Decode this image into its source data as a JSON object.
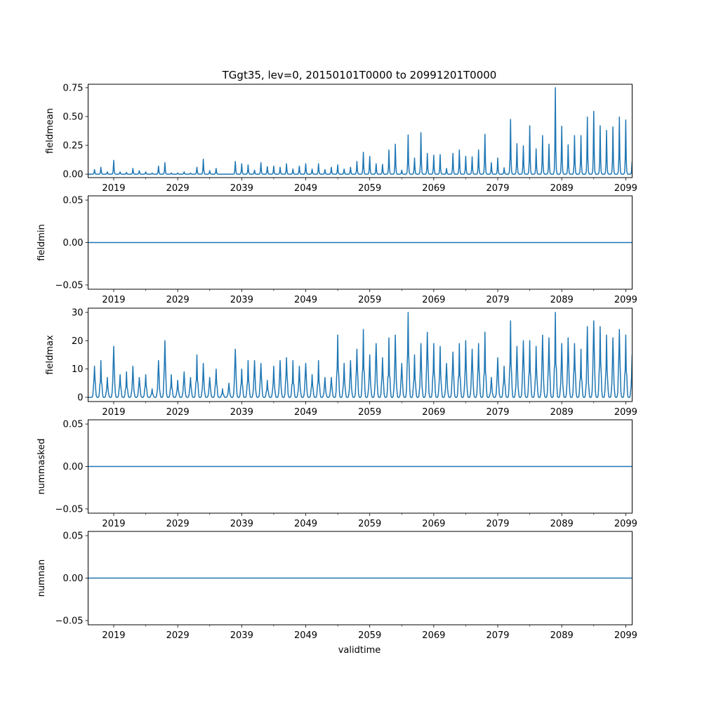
{
  "chart_data": {
    "type": "line",
    "title": "TGgt35, lev=0, 20150101T0000 to 20991201T0000",
    "xlabel": "validtime",
    "xlim": [
      2015.0,
      2100.0
    ],
    "xticks": [
      2019,
      2029,
      2039,
      2049,
      2059,
      2069,
      2079,
      2089,
      2099
    ],
    "minor_xticks": [
      2024,
      2034,
      2044,
      2054,
      2064,
      2074,
      2084,
      2094
    ],
    "line_color": "#1f77b4",
    "peak_years": "annual peak values, one per year 2015..2099 (peak near year end)",
    "panels": [
      {
        "ylabel": "fieldmean",
        "ylim": [
          -0.03,
          0.78
        ],
        "yticks": [
          0.0,
          0.25,
          0.5,
          0.75
        ],
        "yticklabels": [
          "0.00",
          "0.25",
          "0.50",
          "0.75"
        ],
        "kind": "spiky",
        "annual_peaks": [
          0.04,
          0.06,
          0.02,
          0.12,
          0.02,
          0.015,
          0.05,
          0.03,
          0.02,
          0.01,
          0.07,
          0.1,
          0.01,
          0.01,
          0.02,
          0.01,
          0.06,
          0.13,
          0.03,
          0.05,
          0.0,
          0.0,
          0.11,
          0.09,
          0.08,
          0.035,
          0.1,
          0.065,
          0.07,
          0.06,
          0.09,
          0.045,
          0.07,
          0.09,
          0.045,
          0.09,
          0.04,
          0.06,
          0.08,
          0.045,
          0.06,
          0.11,
          0.19,
          0.155,
          0.09,
          0.085,
          0.21,
          0.26,
          0.035,
          0.34,
          0.14,
          0.36,
          0.18,
          0.165,
          0.17,
          0.05,
          0.18,
          0.21,
          0.155,
          0.15,
          0.21,
          0.345,
          0.1,
          0.14,
          0.055,
          0.475,
          0.265,
          0.245,
          0.42,
          0.22,
          0.335,
          0.26,
          0.75,
          0.415,
          0.255,
          0.335,
          0.335,
          0.495,
          0.545,
          0.42,
          0.38,
          0.41,
          0.495,
          0.47,
          0.11
        ]
      },
      {
        "ylabel": "fieldmin",
        "ylim": [
          -0.055,
          0.055
        ],
        "yticks": [
          -0.05,
          0.0,
          0.05
        ],
        "yticklabels": [
          "−0.05",
          "0.00",
          "0.05"
        ],
        "kind": "constant",
        "value": 0.0
      },
      {
        "ylabel": "fieldmax",
        "ylim": [
          -1.5,
          31.5
        ],
        "yticks": [
          0,
          10,
          20,
          30
        ],
        "yticklabels": [
          "0",
          "10",
          "20",
          "30"
        ],
        "kind": "broad",
        "annual_peaks": [
          11,
          13,
          7,
          18,
          8,
          9,
          11,
          7,
          8,
          3,
          13,
          20,
          8,
          6,
          9,
          7,
          15,
          12,
          7,
          10,
          3,
          5,
          17,
          10,
          13,
          13,
          12,
          6,
          11,
          13,
          14,
          13,
          11,
          12,
          8,
          13,
          7,
          7,
          22,
          12,
          13,
          17,
          24,
          15,
          19,
          14,
          21,
          22,
          12,
          30,
          15,
          19,
          23,
          19,
          18,
          12,
          16,
          19,
          20,
          17,
          19,
          23,
          7,
          14,
          11,
          27,
          18,
          20,
          20,
          18,
          22,
          21,
          30,
          19,
          21,
          19,
          17,
          25,
          27,
          25,
          22,
          21,
          24,
          22,
          15
        ]
      },
      {
        "ylabel": "nummasked",
        "ylim": [
          -0.055,
          0.055
        ],
        "yticks": [
          -0.05,
          0.0,
          0.05
        ],
        "yticklabels": [
          "−0.05",
          "0.00",
          "0.05"
        ],
        "kind": "constant",
        "value": 0.0
      },
      {
        "ylabel": "numnan",
        "ylim": [
          -0.055,
          0.055
        ],
        "yticks": [
          -0.05,
          0.0,
          0.05
        ],
        "yticklabels": [
          "−0.05",
          "0.00",
          "0.05"
        ],
        "kind": "constant",
        "value": 0.0
      }
    ]
  }
}
